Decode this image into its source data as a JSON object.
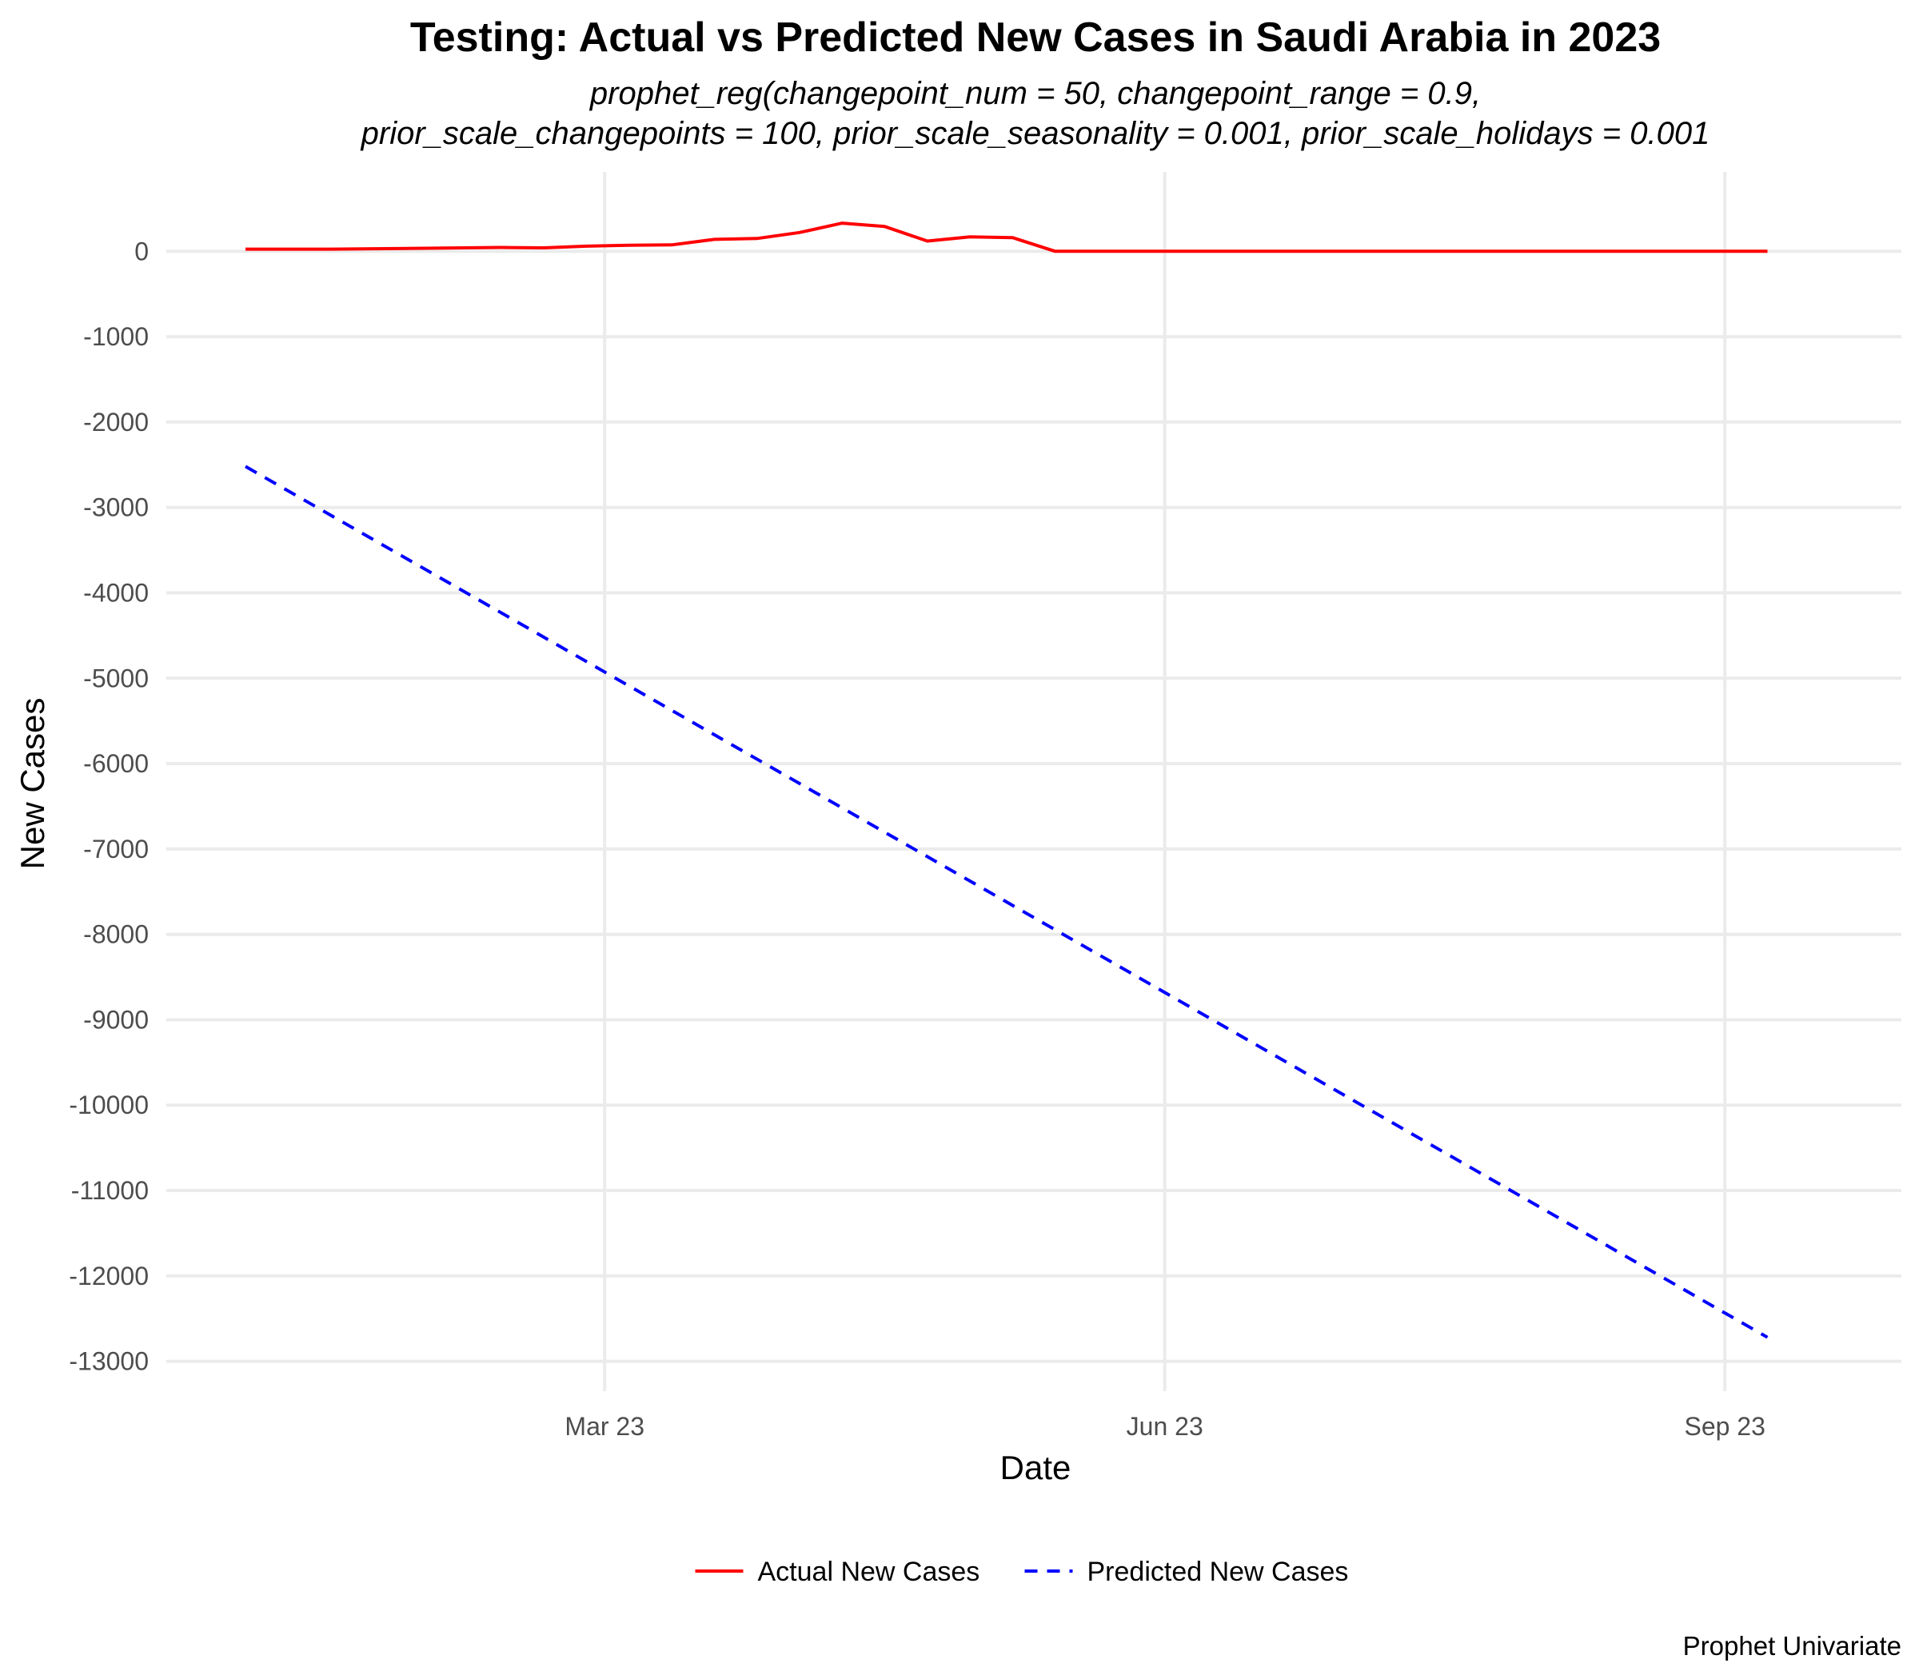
{
  "chart_data": {
    "type": "line",
    "title": "Testing: Actual vs Predicted New Cases in Saudi Arabia in 2023",
    "subtitle_lines": [
      "prophet_reg(changepoint_num = 50, changepoint_range = 0.9,",
      "prior_scale_changepoints = 100, prior_scale_seasonality = 0.001, prior_scale_holidays = 0.001"
    ],
    "xlabel": "Date",
    "ylabel": "New Cases",
    "caption": "Prophet Univariate",
    "xlim": [
      "2022-12-19",
      "2023-09-30"
    ],
    "ylim": [
      -13350,
      930
    ],
    "x_ticks": [
      {
        "value": "2023-03-01",
        "label": "Mar 23"
      },
      {
        "value": "2023-06-01",
        "label": "Jun 23"
      },
      {
        "value": "2023-09-01",
        "label": "Sep 23"
      }
    ],
    "y_ticks": [
      0,
      -1000,
      -2000,
      -3000,
      -4000,
      -5000,
      -6000,
      -7000,
      -8000,
      -9000,
      -10000,
      -11000,
      -12000,
      -13000
    ],
    "grid": true,
    "legend_position": "bottom",
    "series": [
      {
        "name": "Actual New Cases",
        "color": "#ff0000",
        "line_style": "solid",
        "points": [
          {
            "x": "2023-01-01",
            "y": 25
          },
          {
            "x": "2023-01-15",
            "y": 25
          },
          {
            "x": "2023-01-29",
            "y": 35
          },
          {
            "x": "2023-02-12",
            "y": 45
          },
          {
            "x": "2023-02-19",
            "y": 40
          },
          {
            "x": "2023-02-26",
            "y": 60
          },
          {
            "x": "2023-03-05",
            "y": 70
          },
          {
            "x": "2023-03-12",
            "y": 75
          },
          {
            "x": "2023-03-19",
            "y": 140
          },
          {
            "x": "2023-03-26",
            "y": 150
          },
          {
            "x": "2023-04-02",
            "y": 220
          },
          {
            "x": "2023-04-09",
            "y": 330
          },
          {
            "x": "2023-04-16",
            "y": 290
          },
          {
            "x": "2023-04-23",
            "y": 120
          },
          {
            "x": "2023-04-30",
            "y": 170
          },
          {
            "x": "2023-05-07",
            "y": 160
          },
          {
            "x": "2023-05-14",
            "y": 0
          },
          {
            "x": "2023-09-08",
            "y": 0
          }
        ]
      },
      {
        "name": "Predicted New Cases",
        "color": "#0000ff",
        "line_style": "dashed",
        "points": [
          {
            "x": "2023-01-01",
            "y": -2520
          },
          {
            "x": "2023-09-08",
            "y": -12720
          }
        ]
      }
    ]
  }
}
